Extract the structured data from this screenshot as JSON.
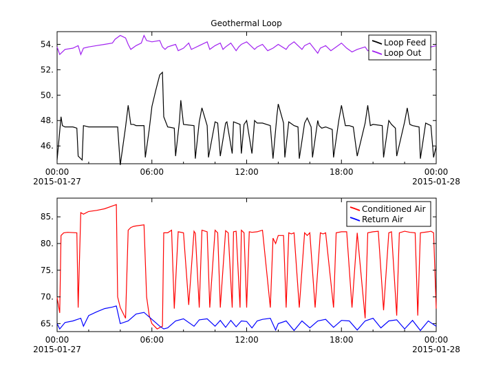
{
  "chart_data": [
    {
      "type": "line",
      "title": "Geothermal Loop",
      "xlabel": "",
      "ylabel": "",
      "x_range": [
        "2015-01-27 00:00",
        "2015-01-28 00:00"
      ],
      "ylim": [
        44.6,
        55.0
      ],
      "yticks": [
        46,
        48,
        50,
        52,
        54
      ],
      "ytick_labels": [
        "46.",
        "48.",
        "50.",
        "52.",
        "54."
      ],
      "xtick_labels": [
        {
          "x": "00:00",
          "label": "00:00",
          "date": "2015-01-27"
        },
        {
          "x": "06:00",
          "label": "06:00",
          "date": ""
        },
        {
          "x": "12:00",
          "label": "12:00",
          "date": ""
        },
        {
          "x": "18:00",
          "label": "18:00",
          "date": ""
        },
        {
          "x": "24:00",
          "label": "00:00",
          "date": "2015-01-28"
        }
      ],
      "grid": false,
      "legend_position": "top-right",
      "series": [
        {
          "name": "Loop Feed",
          "color": "#000000",
          "x": [
            "00:00",
            "00:15",
            "00:20",
            "00:30",
            "01:00",
            "01:15",
            "01:20",
            "01:35",
            "01:40",
            "02:00",
            "03:00",
            "03:50",
            "04:00",
            "04:20",
            "04:30",
            "04:40",
            "04:50",
            "05:00",
            "05:30",
            "05:35",
            "05:50",
            "06:00",
            "06:15",
            "06:30",
            "06:40",
            "06:45",
            "07:00",
            "07:25",
            "07:30",
            "07:45",
            "07:50",
            "08:00",
            "08:40",
            "08:45",
            "09:00",
            "09:10",
            "09:30",
            "09:35",
            "10:00",
            "10:10",
            "10:20",
            "10:40",
            "10:45",
            "11:05",
            "11:10",
            "11:35",
            "11:40",
            "11:50",
            "12:00",
            "12:20",
            "12:30",
            "12:40",
            "13:00",
            "13:30",
            "13:40",
            "13:55",
            "14:00",
            "14:20",
            "14:25",
            "14:40",
            "15:00",
            "15:15",
            "15:20",
            "15:40",
            "15:50",
            "16:05",
            "16:10",
            "16:30",
            "16:35",
            "16:45",
            "17:00",
            "17:25",
            "17:30",
            "17:50",
            "18:00",
            "18:15",
            "18:30",
            "18:45",
            "19:00",
            "19:30",
            "19:40",
            "19:50",
            "20:00",
            "20:35",
            "20:40",
            "21:00",
            "21:10",
            "21:25",
            "21:30",
            "22:00",
            "22:10",
            "22:20",
            "22:30",
            "22:55",
            "23:00",
            "23:20",
            "23:40",
            "23:50",
            "24:00"
          ],
          "y": [
            44.9,
            48.3,
            47.6,
            47.5,
            47.5,
            47.4,
            45.2,
            44.9,
            47.6,
            47.5,
            47.5,
            47.5,
            44.5,
            47.5,
            49.2,
            47.7,
            47.7,
            47.6,
            47.6,
            45.1,
            47.3,
            49.1,
            50.4,
            51.6,
            51.8,
            48.3,
            47.5,
            47.4,
            45.2,
            48.0,
            49.6,
            47.7,
            47.6,
            45.0,
            47.9,
            49.0,
            47.6,
            45.1,
            47.9,
            47.8,
            45.2,
            47.8,
            47.9,
            45.4,
            47.9,
            47.7,
            45.4,
            47.7,
            48.0,
            45.4,
            48.0,
            47.8,
            47.8,
            47.6,
            45.0,
            48.4,
            49.3,
            47.8,
            45.1,
            47.9,
            47.6,
            47.5,
            45.0,
            47.8,
            48.2,
            47.5,
            45.1,
            48.0,
            47.6,
            47.4,
            47.5,
            47.3,
            45.1,
            48.0,
            49.2,
            47.6,
            47.6,
            47.5,
            45.2,
            47.8,
            49.2,
            47.6,
            47.7,
            47.6,
            45.1,
            48.0,
            47.7,
            47.4,
            45.2,
            47.9,
            49.0,
            47.7,
            47.6,
            47.5,
            45.0,
            47.8,
            47.6,
            45.1,
            46.0
          ]
        },
        {
          "name": "Loop Out",
          "color": "#a020f0",
          "x": [
            "00:00",
            "00:10",
            "00:30",
            "01:00",
            "01:20",
            "01:30",
            "01:40",
            "02:00",
            "02:30",
            "03:00",
            "03:30",
            "03:40",
            "04:00",
            "04:20",
            "04:30",
            "04:40",
            "05:00",
            "05:20",
            "05:30",
            "05:40",
            "06:00",
            "06:30",
            "06:40",
            "06:50",
            "07:00",
            "07:30",
            "07:40",
            "08:00",
            "08:20",
            "08:30",
            "08:40",
            "09:00",
            "09:30",
            "09:40",
            "10:00",
            "10:20",
            "10:30",
            "10:40",
            "11:00",
            "11:20",
            "11:30",
            "11:40",
            "12:00",
            "12:30",
            "12:40",
            "13:00",
            "13:20",
            "13:40",
            "14:00",
            "14:30",
            "14:40",
            "15:00",
            "15:30",
            "15:40",
            "16:00",
            "16:30",
            "16:40",
            "17:00",
            "17:20",
            "17:40",
            "18:00",
            "18:20",
            "18:40",
            "19:00",
            "19:30",
            "19:40",
            "20:00",
            "20:20",
            "20:40",
            "21:00",
            "21:30",
            "21:40",
            "22:00",
            "22:20",
            "22:40",
            "23:00",
            "23:20",
            "23:40",
            "24:00"
          ],
          "y": [
            53.8,
            53.2,
            53.6,
            53.7,
            53.9,
            53.2,
            53.7,
            53.8,
            53.9,
            54.0,
            54.1,
            54.4,
            54.7,
            54.5,
            54.0,
            53.6,
            53.9,
            54.1,
            54.7,
            54.3,
            54.2,
            54.3,
            53.8,
            53.6,
            53.8,
            54.0,
            53.5,
            53.7,
            54.1,
            53.6,
            53.7,
            53.9,
            54.2,
            53.6,
            53.9,
            54.1,
            53.6,
            53.8,
            54.1,
            53.5,
            53.8,
            54.0,
            54.2,
            53.6,
            53.8,
            54.0,
            53.5,
            53.7,
            54.0,
            53.6,
            53.9,
            54.2,
            53.6,
            53.9,
            54.1,
            53.3,
            53.7,
            53.9,
            53.5,
            53.8,
            54.1,
            53.7,
            53.4,
            53.6,
            53.8,
            53.5,
            53.6,
            53.7,
            53.4,
            53.8,
            54.0,
            53.6,
            53.8,
            53.9,
            53.6,
            53.9,
            54.0,
            53.8,
            53.9
          ]
        }
      ]
    },
    {
      "type": "line",
      "title": "",
      "xlabel": "",
      "ylabel": "",
      "x_range": [
        "2015-01-27 00:00",
        "2015-01-28 00:00"
      ],
      "ylim": [
        63.5,
        88.5
      ],
      "yticks": [
        65,
        70,
        75,
        80,
        85
      ],
      "ytick_labels": [
        "65.",
        "70.",
        "75.",
        "80.",
        "85."
      ],
      "xtick_labels": [
        {
          "x": "00:00",
          "label": "00:00",
          "date": "2015-01-27"
        },
        {
          "x": "06:00",
          "label": "06:00",
          "date": ""
        },
        {
          "x": "12:00",
          "label": "12:00",
          "date": ""
        },
        {
          "x": "18:00",
          "label": "18:00",
          "date": ""
        },
        {
          "x": "24:00",
          "label": "00:00",
          "date": "2015-01-28"
        }
      ],
      "grid": false,
      "legend_position": "top-right",
      "series": [
        {
          "name": "Conditioned Air",
          "color": "#ff0000",
          "x": [
            "00:00",
            "00:10",
            "00:15",
            "00:25",
            "00:40",
            "01:15",
            "01:20",
            "01:30",
            "01:40",
            "02:00",
            "02:30",
            "03:00",
            "03:45",
            "03:50",
            "04:00",
            "04:20",
            "04:30",
            "04:40",
            "04:50",
            "05:00",
            "05:30",
            "05:40",
            "05:50",
            "06:00",
            "06:20",
            "06:40",
            "06:45",
            "07:00",
            "07:15",
            "07:25",
            "07:40",
            "08:00",
            "08:20",
            "08:40",
            "08:45",
            "09:00",
            "09:10",
            "09:30",
            "09:40",
            "10:00",
            "10:10",
            "10:20",
            "10:40",
            "10:50",
            "11:05",
            "11:10",
            "11:20",
            "11:35",
            "11:40",
            "11:50",
            "12:00",
            "12:10",
            "12:20",
            "12:40",
            "13:00",
            "13:30",
            "13:40",
            "13:50",
            "14:00",
            "14:20",
            "14:30",
            "14:40",
            "14:50",
            "15:00",
            "15:20",
            "15:40",
            "15:50",
            "16:00",
            "16:20",
            "16:40",
            "16:50",
            "17:00",
            "17:30",
            "17:40",
            "18:00",
            "18:20",
            "18:40",
            "19:00",
            "19:30",
            "19:40",
            "20:00",
            "20:20",
            "20:40",
            "21:00",
            "21:10",
            "21:30",
            "21:40",
            "22:00",
            "22:20",
            "22:40",
            "22:50",
            "23:00",
            "23:30",
            "23:40",
            "23:50",
            "24:00"
          ],
          "y": [
            69.9,
            67.0,
            81.5,
            82.0,
            82.1,
            82.0,
            68.0,
            85.8,
            85.5,
            86.0,
            86.2,
            86.5,
            87.3,
            70.0,
            68.0,
            66.0,
            82.5,
            83.0,
            83.2,
            83.3,
            83.5,
            70.0,
            66.5,
            65.0,
            64.0,
            64.5,
            82.0,
            82.0,
            82.5,
            67.8,
            82.2,
            82.0,
            68.5,
            82.3,
            81.9,
            68.0,
            82.5,
            82.2,
            68.0,
            82.5,
            82.0,
            68.0,
            82.4,
            82.0,
            68.0,
            82.2,
            82.3,
            68.0,
            82.5,
            82.0,
            68.0,
            82.2,
            82.1,
            82.2,
            82.5,
            68.0,
            81.0,
            80.0,
            81.5,
            81.5,
            68.0,
            82.0,
            81.8,
            82.0,
            68.0,
            82.0,
            81.5,
            82.0,
            68.0,
            82.0,
            81.8,
            82.0,
            68.0,
            82.0,
            82.2,
            82.2,
            68.0,
            82.0,
            66.0,
            82.0,
            82.2,
            82.3,
            67.5,
            82.0,
            82.2,
            66.5,
            82.0,
            82.3,
            82.1,
            82.0,
            66.5,
            82.0,
            82.2,
            82.3,
            82.0,
            67.8
          ]
        },
        {
          "name": "Return Air",
          "color": "#0000ff",
          "x": [
            "00:00",
            "00:10",
            "00:30",
            "01:00",
            "01:30",
            "01:40",
            "02:00",
            "02:30",
            "03:00",
            "03:30",
            "03:45",
            "04:00",
            "04:30",
            "05:00",
            "05:30",
            "06:00",
            "06:30",
            "06:45",
            "07:00",
            "07:30",
            "08:00",
            "08:40",
            "09:00",
            "09:30",
            "10:00",
            "10:20",
            "10:40",
            "11:00",
            "11:20",
            "11:40",
            "12:00",
            "12:20",
            "12:40",
            "13:00",
            "13:30",
            "13:50",
            "14:00",
            "14:30",
            "15:00",
            "15:30",
            "16:00",
            "16:30",
            "17:00",
            "17:30",
            "18:00",
            "18:30",
            "19:00",
            "19:30",
            "20:00",
            "20:30",
            "21:00",
            "21:30",
            "22:00",
            "22:30",
            "23:00",
            "23:30",
            "24:00"
          ],
          "y": [
            65.0,
            64.0,
            65.2,
            65.5,
            66.0,
            64.5,
            66.5,
            67.2,
            67.8,
            68.1,
            68.3,
            65.0,
            65.5,
            66.8,
            67.1,
            65.8,
            64.5,
            64.0,
            64.2,
            65.5,
            65.9,
            64.5,
            65.7,
            65.9,
            64.5,
            65.6,
            64.3,
            65.6,
            64.4,
            65.5,
            65.4,
            64.2,
            65.5,
            65.8,
            66.0,
            63.8,
            65.0,
            65.5,
            63.7,
            65.5,
            64.2,
            65.5,
            65.8,
            64.3,
            65.6,
            65.5,
            63.8,
            65.5,
            66.0,
            64.2,
            65.5,
            65.7,
            64.0,
            65.6,
            63.7,
            65.5,
            64.5
          ]
        }
      ]
    }
  ]
}
